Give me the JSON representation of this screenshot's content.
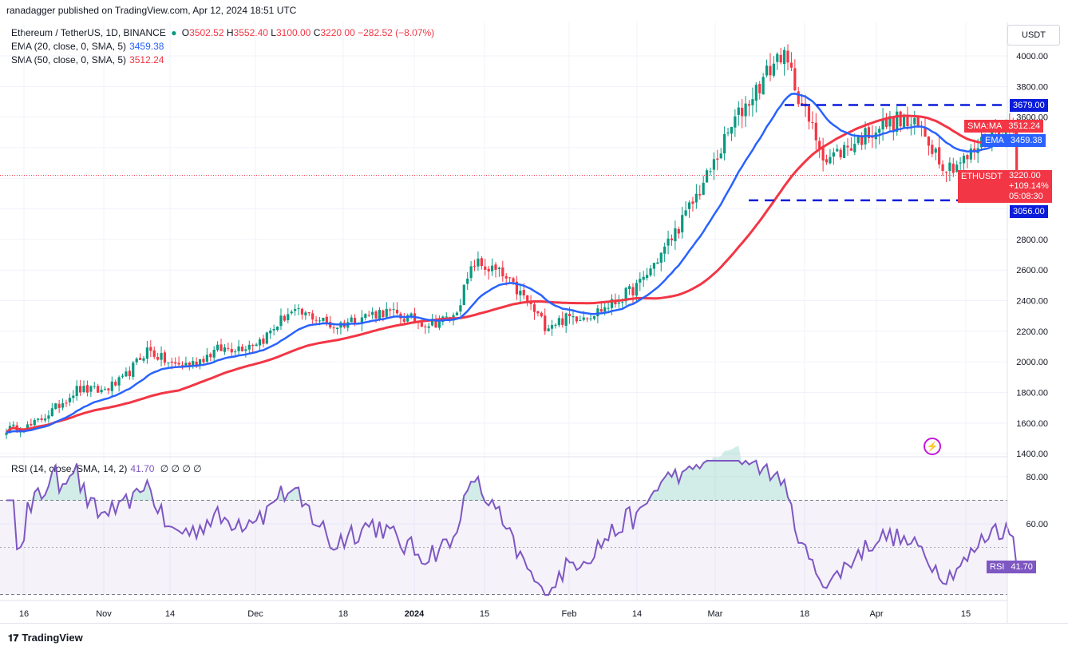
{
  "header": {
    "published": "ranadagger published on TradingView.com, Apr 12, 2024 18:51 UTC",
    "symbol": "Ethereum / TetherUS, 1D, BINANCE",
    "ohlc": {
      "o_label": "O",
      "o": "3502.52",
      "h_label": "H",
      "h": "3552.40",
      "l_label": "L",
      "l": "3100.00",
      "c_label": "C",
      "c": "3220.00",
      "change": "−282.52 (−8.07%)"
    },
    "ema_label": "EMA (20, close, 0, SMA, 5)",
    "ema_value": "3459.38",
    "sma_label": "SMA (50, close, 0, SMA, 5)",
    "sma_value": "3512.24",
    "rsi_label": "RSI (14, close, SMA, 14, 2)",
    "rsi_value": "41.70",
    "rsi_extra": "∅ ∅ ∅ ∅"
  },
  "toolbar": {
    "unit": "USDT"
  },
  "tags": {
    "resistance": "3679.00",
    "sma_name": "SMA:MA",
    "sma_value": "3512.24",
    "ema_name": "EMA",
    "ema_value": "3459.38",
    "symbol_name": "ETHUSDT",
    "price": "3220.00",
    "pct": "+109.14%",
    "countdown": "05:08:30",
    "support": "3056.00",
    "rsi_name": "RSI",
    "rsi_value": "41.70"
  },
  "brand": {
    "name": "TradingView",
    "logo": "tradingview-logo-icon"
  },
  "colors": {
    "up": "#089981",
    "down": "#f23645",
    "ema": "#2962ff",
    "sma": "#f23645",
    "rsi": "#7e57c2",
    "levels": "#0b1ddb"
  },
  "chart_data": [
    {
      "type": "candlestick",
      "title": "Ethereum / TetherUS, 1D, BINANCE",
      "ylim": [
        1400,
        4080
      ],
      "y_ticks": [
        "1400.00",
        "1600.00",
        "1800.00",
        "2000.00",
        "2200.00",
        "2400.00",
        "2600.00",
        "2800.00",
        "3000.00",
        "3200.00",
        "3400.00",
        "3600.00",
        "3800.00",
        "4000.00"
      ],
      "x_ticks": [
        "16",
        "Nov",
        "14",
        "Dec",
        "18",
        "2024",
        "15",
        "Feb",
        "14",
        "Mar",
        "18",
        "Apr",
        "15"
      ],
      "levels": {
        "resistance": 3679,
        "support": 3056
      },
      "waypoints": [
        [
          0,
          1560
        ],
        [
          7,
          1580
        ],
        [
          13,
          1680
        ],
        [
          20,
          1820
        ],
        [
          27,
          1810
        ],
        [
          33,
          1880
        ],
        [
          40,
          2080
        ],
        [
          47,
          1980
        ],
        [
          53,
          1990
        ],
        [
          60,
          2080
        ],
        [
          67,
          2100
        ],
        [
          73,
          2150
        ],
        [
          80,
          2320
        ],
        [
          87,
          2300
        ],
        [
          93,
          2230
        ],
        [
          100,
          2290
        ],
        [
          107,
          2330
        ],
        [
          113,
          2290
        ],
        [
          120,
          2250
        ],
        [
          127,
          2290
        ],
        [
          133,
          2650
        ],
        [
          140,
          2580
        ],
        [
          147,
          2420
        ],
        [
          153,
          2240
        ],
        [
          160,
          2290
        ],
        [
          167,
          2320
        ],
        [
          173,
          2390
        ],
        [
          180,
          2510
        ],
        [
          187,
          2740
        ],
        [
          193,
          2960
        ],
        [
          200,
          3250
        ],
        [
          207,
          3580
        ],
        [
          213,
          3780
        ],
        [
          220,
          4020
        ],
        [
          223,
          3880
        ],
        [
          227,
          3620
        ],
        [
          233,
          3320
        ],
        [
          240,
          3420
        ],
        [
          247,
          3530
        ],
        [
          253,
          3580
        ],
        [
          260,
          3520
        ],
        [
          267,
          3270
        ],
        [
          273,
          3330
        ],
        [
          280,
          3510
        ],
        [
          283,
          3530
        ],
        [
          286,
          3502
        ],
        [
          287,
          3220
        ]
      ],
      "series": [
        {
          "name": "EMA (20, close, 0, SMA, 5)",
          "last": 3459.38
        },
        {
          "name": "SMA (50, close, 0, SMA, 5)",
          "last": 3512.24
        }
      ]
    },
    {
      "type": "line",
      "title": "RSI (14, close, SMA, 14, 2)",
      "ylim": [
        30,
        90
      ],
      "y_ticks": [
        "60.00",
        "80.00"
      ],
      "bands": [
        30,
        70
      ],
      "series": [
        {
          "name": "RSI",
          "last": 41.7
        }
      ]
    }
  ]
}
